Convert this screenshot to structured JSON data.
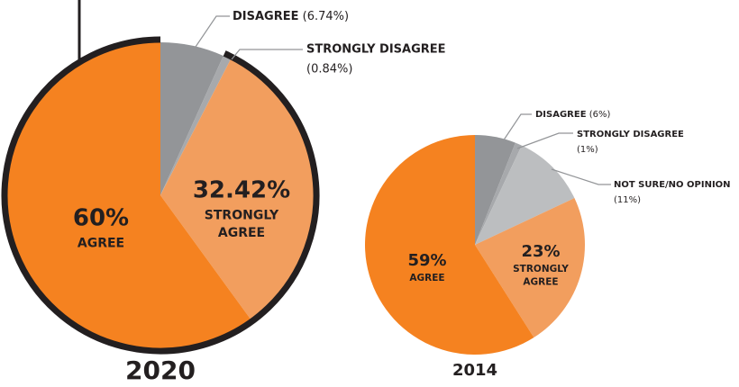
{
  "chart_data": [
    {
      "type": "pie",
      "title": "2020",
      "categories": [
        "DISAGREE",
        "STRONGLY DISAGREE",
        "STRONGLY AGREE",
        "AGREE"
      ],
      "values": [
        6.74,
        0.84,
        32.42,
        60
      ],
      "value_labels": [
        "(6.74%)",
        "(0.84%)",
        "32.42%",
        "60%"
      ],
      "colors": [
        "#939598",
        "#a7a9ac",
        "#f29e5e",
        "#f58220"
      ]
    },
    {
      "type": "pie",
      "title": "2014",
      "categories": [
        "DISAGREE",
        "STRONGLY DISAGREE",
        "NOT SURE/NO OPINION",
        "STRONGLY AGREE",
        "AGREE"
      ],
      "values": [
        6,
        1,
        11,
        23,
        59
      ],
      "value_labels": [
        "(6%)",
        "(1%)",
        "(11%)",
        "23%",
        "59%"
      ],
      "colors": [
        "#939598",
        "#a7a9ac",
        "#bcbec0",
        "#f29e5e",
        "#f58220"
      ]
    }
  ]
}
